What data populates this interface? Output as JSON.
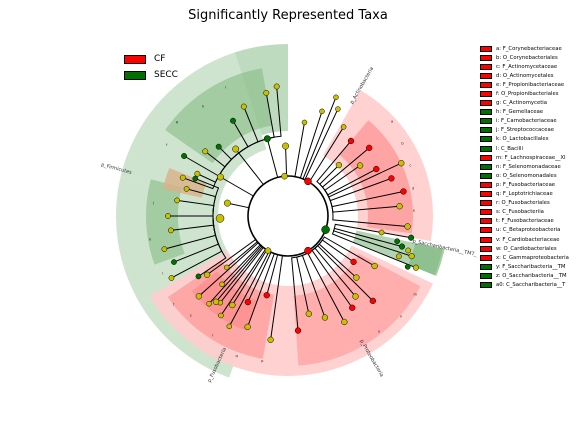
{
  "title": "Significantly Represented Taxa",
  "colors": {
    "CF": "#ff0000",
    "SECC": "#007000",
    "neutral": "#c8c000",
    "bg_CF": "#ff8080",
    "bg_SECC": "#80b880",
    "bg_pink": "#ffcccc"
  },
  "chart_data": {
    "type": "cladogram",
    "title": "Significantly Represented Taxa",
    "groups": [
      {
        "name": "CF",
        "color": "#ff0000"
      },
      {
        "name": "SECC",
        "color": "#007000"
      }
    ],
    "clades": [
      {
        "name": "p_Firmicutes",
        "group": "SECC"
      },
      {
        "name": "p_Actinobacteria",
        "group": "CF"
      },
      {
        "name": "p_Saccharibacteria__TM7_",
        "group": "SECC"
      },
      {
        "name": "p_Proteobacteria",
        "group": "CF"
      },
      {
        "name": "p_Fusobacteria",
        "group": "CF"
      }
    ],
    "legend_entries": [
      {
        "key": "a",
        "label": "a: F_Corynebacteriaceae",
        "group": "CF"
      },
      {
        "key": "b",
        "label": "b: O_Corynebacteriales",
        "group": "CF"
      },
      {
        "key": "c",
        "label": "c: F_Actinomycetaceae",
        "group": "CF"
      },
      {
        "key": "d",
        "label": "d: O_Actinomycetales",
        "group": "CF"
      },
      {
        "key": "e",
        "label": "e: F_Propionibacteriaceae",
        "group": "CF"
      },
      {
        "key": "f",
        "label": "f: O_Propionibacteriales",
        "group": "CF"
      },
      {
        "key": "g",
        "label": "g: C_Actinomycetia",
        "group": "CF"
      },
      {
        "key": "h",
        "label": "h: F_Gemellaceae",
        "group": "SECC"
      },
      {
        "key": "i",
        "label": "i: F_Carnobacteriaceae",
        "group": "SECC"
      },
      {
        "key": "j",
        "label": "j: F_Streptococcaceae",
        "group": "SECC"
      },
      {
        "key": "k",
        "label": "k: O_Lactobacillales",
        "group": "SECC"
      },
      {
        "key": "l",
        "label": "l: C_Bacilli",
        "group": "SECC"
      },
      {
        "key": "m",
        "label": "m: F_Lachnospiraceae__XI",
        "group": "CF"
      },
      {
        "key": "n",
        "label": "n: F_Selenomonadaceae",
        "group": "SECC"
      },
      {
        "key": "o",
        "label": "o: O_Selenomonadales",
        "group": "SECC"
      },
      {
        "key": "p",
        "label": "p: F_Fusobacteriaceae",
        "group": "CF"
      },
      {
        "key": "q",
        "label": "q: F_Leptotrichiaceae",
        "group": "CF"
      },
      {
        "key": "r",
        "label": "r: O_Fusobacteriales",
        "group": "CF"
      },
      {
        "key": "s",
        "label": "s: C_Fusobacteriia",
        "group": "CF"
      },
      {
        "key": "t",
        "label": "t: F_Fusobacteriaceae",
        "group": "CF"
      },
      {
        "key": "u",
        "label": "u: C_Betaproteobacteria",
        "group": "CF"
      },
      {
        "key": "v",
        "label": "v: F_Cardiobacteriaceae",
        "group": "CF"
      },
      {
        "key": "w",
        "label": "w: O_Cardiobacteriales",
        "group": "CF"
      },
      {
        "key": "x",
        "label": "x: C_Gammaproteobacteria",
        "group": "CF"
      },
      {
        "key": "y",
        "label": "y: F_Saccharibacteria__TM",
        "group": "SECC"
      },
      {
        "key": "z",
        "label": "z: O_Saccharibacteria__TM",
        "group": "SECC"
      },
      {
        "key": "a0",
        "label": "a0: C_Saccharibacteria__T",
        "group": "SECC"
      }
    ]
  }
}
